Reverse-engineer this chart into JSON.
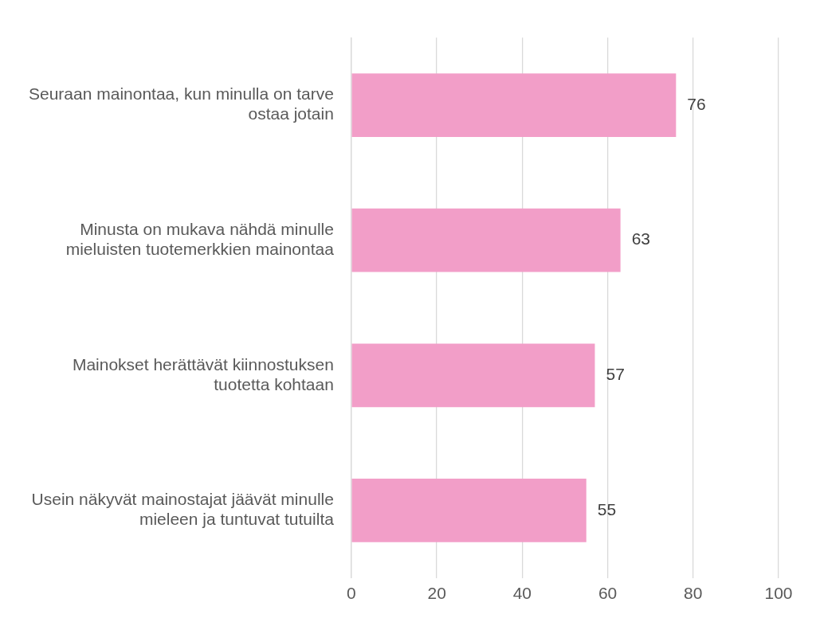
{
  "chart_data": {
    "type": "bar",
    "orientation": "horizontal",
    "categories": [
      "Seuraan mainontaa, kun minulla on tarve ostaa jotain",
      "Minusta on mukava nähdä minulle mieluisten tuotemerkkien mainontaa",
      "Mainokset herättävät kiinnostuksen tuotetta kohtaan",
      "Usein näkyvät mainostajat jäävät minulle mieleen ja tuntuvat tutuilta"
    ],
    "values": [
      76,
      63,
      57,
      55
    ],
    "color": "#f29ec8",
    "xlim": [
      0,
      100
    ],
    "xticks": [
      0,
      20,
      40,
      60,
      80,
      100
    ],
    "grid": "x",
    "data_labels": true,
    "legend": false
  }
}
